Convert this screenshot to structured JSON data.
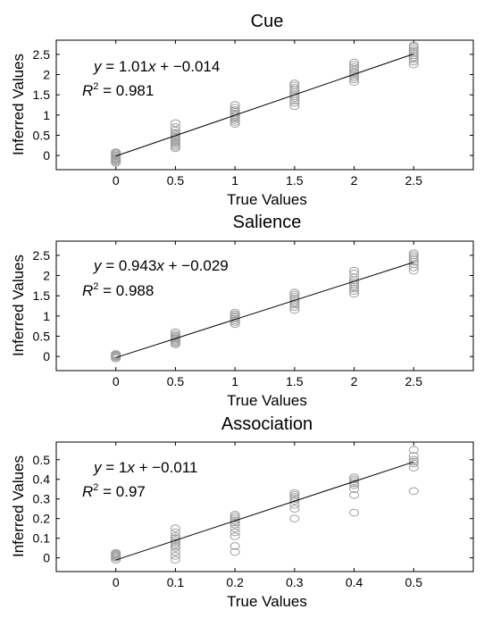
{
  "chart_data": [
    {
      "type": "scatter",
      "title": "Cue",
      "xlabel": "True Values",
      "ylabel": "Inferred Values",
      "xlim": [
        -0.5,
        3.0
      ],
      "ylim": [
        -0.35,
        2.85
      ],
      "x_ticks": [
        "0",
        "0.5",
        "1",
        "1.5",
        "2",
        "2.5"
      ],
      "x_tick_values": [
        0,
        0.5,
        1,
        1.5,
        2,
        2.5
      ],
      "y_ticks": [
        "0",
        "0.5",
        "1",
        "1.5",
        "2",
        "2.5"
      ],
      "y_tick_values": [
        0,
        0.5,
        1,
        1.5,
        2,
        2.5
      ],
      "grid": false,
      "marker_color": "#a0a0a0",
      "fit": {
        "slope": 1.01,
        "intercept": -0.014,
        "x_range": [
          0,
          2.5
        ]
      },
      "equation": {
        "lhs": "y",
        "rhs_a": " = 1.01",
        "rhs_var": "x",
        "rhs_b": " + −0.014"
      },
      "r2": {
        "label": "R",
        "exp": "2",
        "value": " = 0.981"
      },
      "series": [
        {
          "x": 0,
          "y": [
            -0.18,
            -0.15,
            -0.12,
            -0.1,
            -0.08,
            -0.06,
            -0.03,
            0.0,
            0.03,
            0.06,
            0.08
          ]
        },
        {
          "x": 0.5,
          "y": [
            0.18,
            0.22,
            0.26,
            0.3,
            0.33,
            0.37,
            0.4,
            0.44,
            0.48,
            0.52,
            0.56,
            0.62,
            0.7,
            0.8
          ]
        },
        {
          "x": 1,
          "y": [
            0.78,
            0.83,
            0.88,
            0.92,
            0.96,
            1.0,
            1.04,
            1.08,
            1.12,
            1.18,
            1.25
          ]
        },
        {
          "x": 1.5,
          "y": [
            1.22,
            1.3,
            1.36,
            1.42,
            1.47,
            1.52,
            1.57,
            1.62,
            1.67,
            1.73,
            1.78
          ]
        },
        {
          "x": 2,
          "y": [
            1.82,
            1.88,
            1.93,
            1.98,
            2.02,
            2.06,
            2.12,
            2.18,
            2.24,
            2.3
          ]
        },
        {
          "x": 2.5,
          "y": [
            2.25,
            2.32,
            2.38,
            2.43,
            2.48,
            2.53,
            2.58,
            2.63,
            2.68,
            2.72
          ]
        }
      ]
    },
    {
      "type": "scatter",
      "title": "Salience",
      "xlabel": "True Values",
      "ylabel": "Inferred Values",
      "xlim": [
        -0.5,
        3.0
      ],
      "ylim": [
        -0.35,
        2.85
      ],
      "x_ticks": [
        "0",
        "0.5",
        "1",
        "1.5",
        "2",
        "2.5"
      ],
      "x_tick_values": [
        0,
        0.5,
        1,
        1.5,
        2,
        2.5
      ],
      "y_ticks": [
        "0",
        "0.5",
        "1",
        "1.5",
        "2",
        "2.5"
      ],
      "y_tick_values": [
        0,
        0.5,
        1,
        1.5,
        2,
        2.5
      ],
      "grid": false,
      "marker_color": "#a0a0a0",
      "fit": {
        "slope": 0.943,
        "intercept": -0.029,
        "x_range": [
          0,
          2.5
        ]
      },
      "equation": {
        "lhs": "y",
        "rhs_a": " = 0.943",
        "rhs_var": "x",
        "rhs_b": " + −0.029"
      },
      "r2": {
        "label": "R",
        "exp": "2",
        "value": " = 0.988"
      },
      "series": [
        {
          "x": 0,
          "y": [
            -0.05,
            -0.02,
            0.0,
            0.02,
            0.04,
            0.06
          ]
        },
        {
          "x": 0.5,
          "y": [
            0.3,
            0.33,
            0.36,
            0.39,
            0.42,
            0.45,
            0.48,
            0.51,
            0.55,
            0.6
          ]
        },
        {
          "x": 1,
          "y": [
            0.8,
            0.85,
            0.89,
            0.93,
            0.97,
            1.0,
            1.04,
            1.08
          ]
        },
        {
          "x": 1.5,
          "y": [
            1.15,
            1.22,
            1.28,
            1.33,
            1.38,
            1.43,
            1.48,
            1.53,
            1.58
          ]
        },
        {
          "x": 2,
          "y": [
            1.55,
            1.62,
            1.68,
            1.73,
            1.78,
            1.83,
            1.88,
            1.95,
            2.05,
            2.12
          ]
        },
        {
          "x": 2.5,
          "y": [
            2.12,
            2.2,
            2.28,
            2.34,
            2.4,
            2.45,
            2.5,
            2.55
          ]
        }
      ]
    },
    {
      "type": "scatter",
      "title": "Association",
      "xlabel": "True Values",
      "ylabel": "Inferred Values",
      "xlim": [
        -0.1,
        0.6
      ],
      "ylim": [
        -0.07,
        0.59
      ],
      "x_ticks": [
        "0",
        "0.1",
        "0.2",
        "0.3",
        "0.4",
        "0.5"
      ],
      "x_tick_values": [
        0,
        0.1,
        0.2,
        0.3,
        0.4,
        0.5
      ],
      "y_ticks": [
        "0",
        "0.1",
        "0.2",
        "0.3",
        "0.4",
        "0.5"
      ],
      "y_tick_values": [
        0,
        0.1,
        0.2,
        0.3,
        0.4,
        0.5
      ],
      "grid": false,
      "marker_color": "#a0a0a0",
      "fit": {
        "slope": 1,
        "intercept": -0.011,
        "x_range": [
          0,
          0.5
        ]
      },
      "equation": {
        "lhs": "y",
        "rhs_a": " = 1",
        "rhs_var": "x",
        "rhs_b": " + −0.011"
      },
      "r2": {
        "label": "R",
        "exp": "2",
        "value": " = 0.97"
      },
      "series": [
        {
          "x": 0,
          "y": [
            -0.01,
            0.0,
            0.005,
            0.01,
            0.015,
            0.02,
            0.025
          ]
        },
        {
          "x": 0.1,
          "y": [
            -0.01,
            0.01,
            0.03,
            0.05,
            0.06,
            0.07,
            0.08,
            0.09,
            0.1,
            0.11,
            0.13,
            0.15
          ]
        },
        {
          "x": 0.2,
          "y": [
            0.03,
            0.06,
            0.11,
            0.13,
            0.15,
            0.17,
            0.18,
            0.19,
            0.2,
            0.21,
            0.22
          ]
        },
        {
          "x": 0.3,
          "y": [
            0.2,
            0.25,
            0.27,
            0.29,
            0.3,
            0.31,
            0.32,
            0.33
          ]
        },
        {
          "x": 0.4,
          "y": [
            0.23,
            0.32,
            0.35,
            0.37,
            0.38,
            0.39,
            0.4,
            0.41
          ]
        },
        {
          "x": 0.5,
          "y": [
            0.34,
            0.46,
            0.48,
            0.49,
            0.5,
            0.52,
            0.55
          ]
        }
      ]
    }
  ]
}
